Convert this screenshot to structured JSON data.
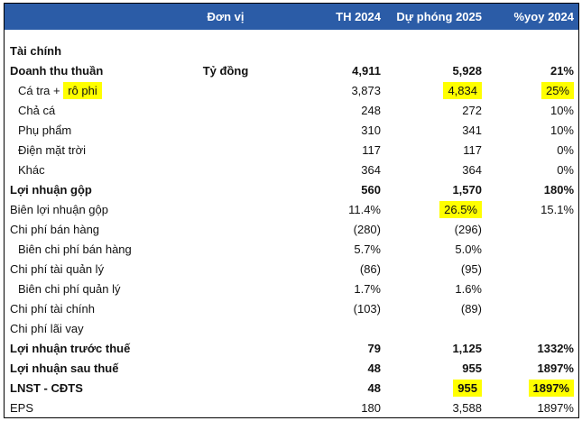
{
  "colors": {
    "header_bg": "#2B5CA7",
    "header_text": "#FFFFFF",
    "highlight": "#FFFF00",
    "border": "#000000"
  },
  "table": {
    "header": {
      "label": "",
      "unit": "Đơn vị",
      "th": "TH 2024",
      "dp": "Dự phóng 2025",
      "yoy": "%yoy 2024"
    },
    "rows": [
      {
        "label": "Tài chính",
        "bold": true,
        "indent": 0,
        "unit": "",
        "th": "",
        "dp": "",
        "yoy": ""
      },
      {
        "label": "Doanh thu thuần",
        "bold": true,
        "indent": 0,
        "unit": "Tỷ đồng",
        "th": "4,911",
        "dp": "5,928",
        "yoy": "21%"
      },
      {
        "label": "Cá tra + ",
        "label_hl": "rô phi",
        "bold": false,
        "indent": 1,
        "unit": "",
        "th": "3,873",
        "dp": "4,834",
        "yoy": "25%",
        "hl_dp": true,
        "hl_yoy": true
      },
      {
        "label": "Chả cá",
        "bold": false,
        "indent": 1,
        "unit": "",
        "th": "248",
        "dp": "272",
        "yoy": "10%"
      },
      {
        "label": "Phụ phẩm",
        "bold": false,
        "indent": 1,
        "unit": "",
        "th": "310",
        "dp": "341",
        "yoy": "10%"
      },
      {
        "label": "Điện mặt trời",
        "bold": false,
        "indent": 1,
        "unit": "",
        "th": "117",
        "dp": "117",
        "yoy": "0%"
      },
      {
        "label": "Khác",
        "bold": false,
        "indent": 1,
        "unit": "",
        "th": "364",
        "dp": "364",
        "yoy": "0%"
      },
      {
        "label": "Lợi nhuận gộp",
        "bold": true,
        "indent": 0,
        "unit": "",
        "th": "560",
        "dp": "1,570",
        "yoy": "180%"
      },
      {
        "label": "Biên lợi nhuận gộp",
        "bold": false,
        "indent": 0,
        "unit": "",
        "th": "11.4%",
        "dp": "26.5%",
        "yoy": "15.1%",
        "hl_dp": true
      },
      {
        "label": "Chi phí bán hàng",
        "bold": false,
        "indent": 0,
        "unit": "",
        "th": "(280)",
        "dp": "(296)",
        "yoy": ""
      },
      {
        "label": "Biên chi phí bán hàng",
        "bold": false,
        "indent": 1,
        "unit": "",
        "th": "5.7%",
        "dp": "5.0%",
        "yoy": ""
      },
      {
        "label": "Chi phí tài quản lý",
        "bold": false,
        "indent": 0,
        "unit": "",
        "th": "(86)",
        "dp": "(95)",
        "yoy": ""
      },
      {
        "label": "Biên chi phí quản lý",
        "bold": false,
        "indent": 1,
        "unit": "",
        "th": "1.7%",
        "dp": "1.6%",
        "yoy": ""
      },
      {
        "label": "Chi phí tài chính",
        "bold": false,
        "indent": 0,
        "unit": "",
        "th": "(103)",
        "dp": "(89)",
        "yoy": ""
      },
      {
        "label": "Chi phí lãi vay",
        "bold": false,
        "indent": 0,
        "unit": "",
        "th": "",
        "dp": "",
        "yoy": ""
      },
      {
        "label": "Lợi nhuận trước thuế",
        "bold": true,
        "indent": 0,
        "unit": "",
        "th": "79",
        "dp": "1,125",
        "yoy": "1332%"
      },
      {
        "label": "Lợi nhuận sau thuế",
        "bold": true,
        "indent": 0,
        "unit": "",
        "th": "48",
        "dp": "955",
        "yoy": "1897%"
      },
      {
        "label": "LNST - CĐTS",
        "bold": true,
        "indent": 0,
        "unit": "",
        "th": "48",
        "dp": "955",
        "yoy": "1897%",
        "hl_dp": true,
        "hl_yoy": true
      },
      {
        "label": "EPS",
        "bold": false,
        "indent": 0,
        "unit": "",
        "th": "180",
        "dp": "3,588",
        "yoy": "1897%"
      }
    ]
  }
}
